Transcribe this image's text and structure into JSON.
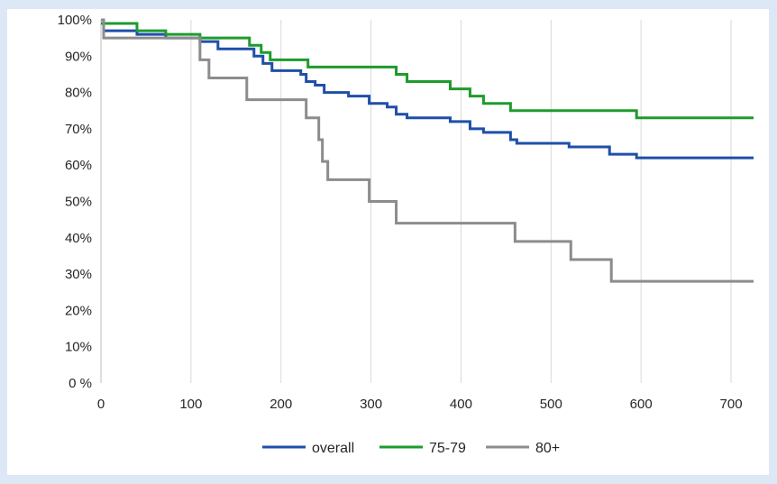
{
  "chart_data": {
    "type": "line",
    "title": "",
    "xlabel": "",
    "ylabel": "",
    "xlim": [
      0,
      725
    ],
    "ylim": [
      0,
      100
    ],
    "x_ticks": [
      0,
      100,
      200,
      300,
      400,
      500,
      600,
      700
    ],
    "y_ticks": [
      0,
      10,
      20,
      30,
      40,
      50,
      60,
      70,
      80,
      90,
      100
    ],
    "x_tick_labels": [
      "0",
      "100",
      "200",
      "300",
      "400",
      "500",
      "600",
      "700"
    ],
    "y_tick_labels": [
      "0 %",
      "10%",
      "20%",
      "30%",
      "40%",
      "50%",
      "60%",
      "70%",
      "80%",
      "90%",
      "100%"
    ],
    "grid": "vertical",
    "legend_position": "bottom",
    "series": [
      {
        "name": "overall",
        "color": "#1f4fa8",
        "step": true,
        "x": [
          0,
          3,
          40,
          72,
          110,
          130,
          170,
          180,
          190,
          222,
          228,
          238,
          248,
          275,
          298,
          318,
          328,
          340,
          388,
          410,
          425,
          455,
          462,
          520,
          565,
          595,
          725
        ],
        "y": [
          100,
          97,
          96,
          95,
          94,
          92,
          90,
          88,
          86,
          85,
          83,
          82,
          80,
          79,
          77,
          76,
          74,
          73,
          72,
          70,
          69,
          67,
          66,
          65,
          63,
          62,
          62
        ]
      },
      {
        "name": "75-79",
        "color": "#1e9b2d",
        "step": true,
        "x": [
          0,
          40,
          72,
          110,
          165,
          178,
          188,
          230,
          328,
          340,
          388,
          410,
          425,
          455,
          595,
          725
        ],
        "y": [
          99,
          97,
          96,
          95,
          93,
          91,
          89,
          87,
          85,
          83,
          81,
          79,
          77,
          75,
          73,
          73
        ]
      },
      {
        "name": "80+",
        "color": "#8c8c8c",
        "step": true,
        "x": [
          0,
          3,
          110,
          120,
          162,
          228,
          242,
          246,
          252,
          278,
          298,
          328,
          460,
          522,
          567,
          725
        ],
        "y": [
          100,
          95,
          89,
          84,
          78,
          73,
          67,
          61,
          56,
          56,
          50,
          44,
          39,
          34,
          28,
          28
        ]
      }
    ]
  }
}
